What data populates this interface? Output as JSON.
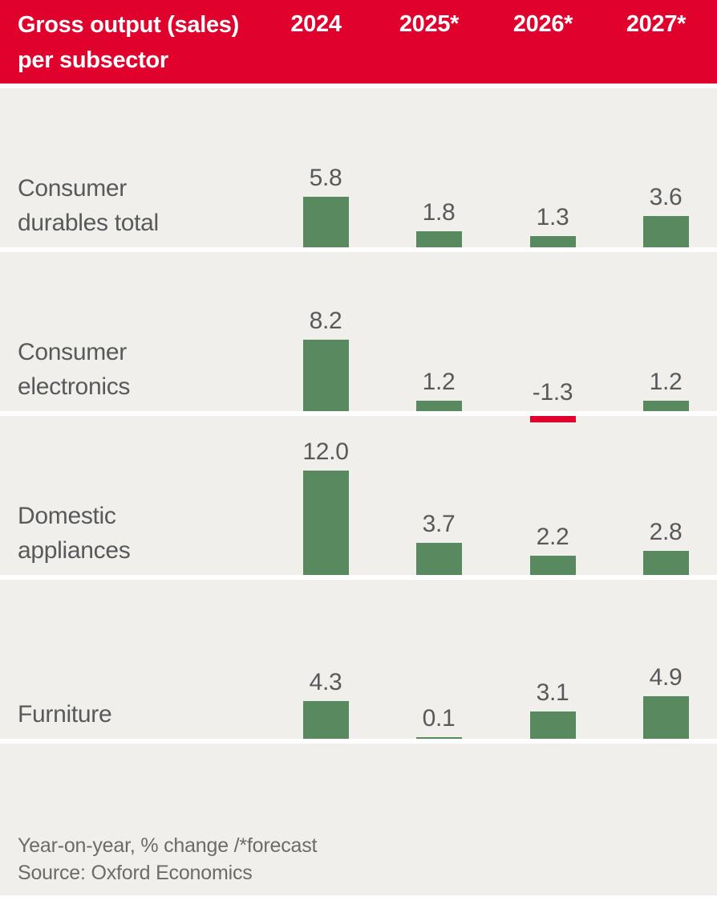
{
  "header": {
    "title_line1": "Gross output (sales)",
    "title_line2": "per subsector",
    "columns": [
      "2024",
      "2025*",
      "2026*",
      "2027*"
    ]
  },
  "chart_data": {
    "type": "bar",
    "title": "Gross output (sales) per subsector",
    "categories": [
      "2024",
      "2025*",
      "2026*",
      "2027*"
    ],
    "series": [
      {
        "name": "Consumer durables total",
        "label_lines": [
          "Consumer",
          "durables total"
        ],
        "values": [
          5.8,
          1.8,
          1.3,
          3.6
        ]
      },
      {
        "name": "Consumer electronics",
        "label_lines": [
          "Consumer",
          "electronics"
        ],
        "values": [
          8.2,
          1.2,
          -1.3,
          1.2
        ]
      },
      {
        "name": "Domestic appliances",
        "label_lines": [
          "Domestic",
          "appliances"
        ],
        "values": [
          12.0,
          3.7,
          2.2,
          2.8
        ]
      },
      {
        "name": "Furniture",
        "label_lines": [
          "Furniture"
        ],
        "values": [
          4.3,
          0.1,
          3.1,
          4.9
        ]
      }
    ],
    "value_labels": true,
    "legend": "none",
    "grid": "off",
    "unit": "Year-on-year, % change",
    "forecast_note": "* = forecast years (2025, 2026, 2027)",
    "positive_color": "#598a5f",
    "negative_color": "#e0022c"
  },
  "footer": {
    "note": "Year-on-year, % change /*forecast",
    "source": "Source: Oxford Economics"
  },
  "colors": {
    "header_background": "#e0022c",
    "header_text": "#ffffff",
    "bar_positive": "#598a5f",
    "bar_negative": "#e0022c",
    "panel_background": "#f0efec",
    "label_text": "#58595b",
    "footer_text": "#6b6b6a"
  }
}
